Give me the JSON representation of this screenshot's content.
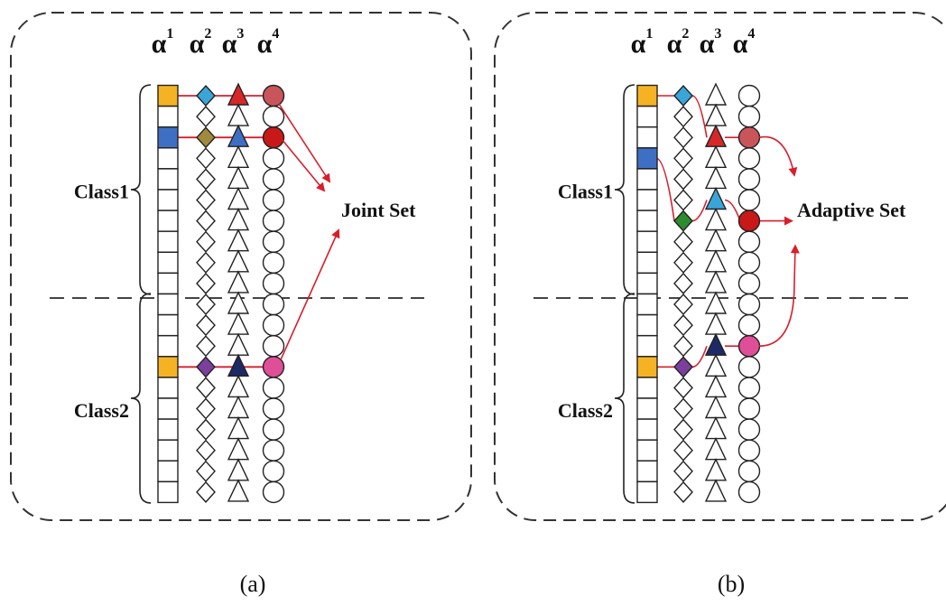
{
  "column_headers": [
    {
      "symbol": "α",
      "sup": "1"
    },
    {
      "symbol": "α",
      "sup": "2"
    },
    {
      "symbol": "α",
      "sup": "3"
    },
    {
      "symbol": "α",
      "sup": "4"
    }
  ],
  "panels": [
    {
      "caption": "(a)",
      "class_labels": [
        "Class1",
        "Class2"
      ],
      "set_label": "Joint Set",
      "selected_rows": [
        0,
        2,
        13
      ],
      "colors": {
        "0": [
          "#f5b324",
          "#3aa6d8",
          "#d62828",
          "#c9555b"
        ],
        "2": [
          "#3f6fc4",
          "#a08a3c",
          "#3f6fc4",
          "#c81818"
        ],
        "13": [
          "#f5b324",
          "#7b3f9c",
          "#1e2a66",
          "#df4f98"
        ]
      }
    },
    {
      "caption": "(b)",
      "class_labels": [
        "Class1",
        "Class2"
      ],
      "set_label": "Adaptive Set",
      "selections": {
        "alpha1": [
          0,
          3,
          13
        ],
        "alpha2": [
          0,
          6,
          13
        ],
        "alpha3": [
          2,
          5,
          12
        ],
        "alpha4": [
          2,
          6,
          12
        ]
      },
      "colors": {
        "alpha1": [
          "#f5b324",
          "#3f6fc4",
          "#f5b324"
        ],
        "alpha2": [
          "#3aa6d8",
          "#2e8b2e",
          "#7b3f9c"
        ],
        "alpha3": [
          "#d62828",
          "#3aa6d8",
          "#1e2a66"
        ],
        "alpha4": [
          "#c9555b",
          "#c81818",
          "#df4f98"
        ]
      }
    }
  ],
  "colors": {
    "arrow": "#d81e2c",
    "border": "#333333",
    "shape_stroke": "#222222"
  }
}
